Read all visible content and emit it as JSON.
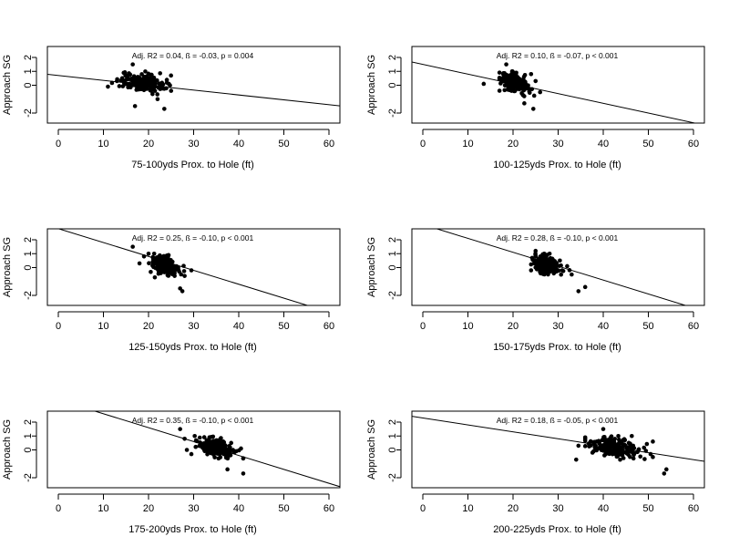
{
  "chart_data": [
    {
      "type": "scatter",
      "title": "",
      "annotation": "Adj. R2 = 0.04, ß = -0.03, p = 0.004",
      "xlabel": "75-100yds Prox. to Hole (ft)",
      "ylabel": "Approach SG",
      "xlim": [
        0,
        60
      ],
      "ylim": [
        -2.5,
        2.5
      ],
      "xticks": [
        0,
        10,
        20,
        30,
        40,
        50,
        60
      ],
      "yticks": [
        -2,
        0,
        1,
        2
      ],
      "fit": {
        "intercept": 0.7,
        "slope": -0.035
      },
      "cluster": {
        "xmean": 18.5,
        "xsd": 2.4,
        "ysd": 0.3,
        "n": 190,
        "xmin": 11,
        "xmax": 26
      },
      "outliers": [
        [
          11,
          -0.1
        ],
        [
          16.5,
          1.5
        ],
        [
          17,
          -1.5
        ],
        [
          23.5,
          -1.7
        ],
        [
          22,
          -1.0
        ],
        [
          25,
          -0.4
        ],
        [
          24.5,
          0.1
        ],
        [
          13,
          0.3
        ]
      ]
    },
    {
      "type": "scatter",
      "title": "",
      "annotation": "Adj. R2 = 0.10, ß = -0.07, p < 0.001",
      "xlabel": "100-125yds Prox. to Hole (ft)",
      "ylabel": "Approach SG",
      "xlim": [
        0,
        60
      ],
      "ylim": [
        -2.5,
        2.5
      ],
      "xticks": [
        0,
        10,
        20,
        30,
        40,
        50,
        60
      ],
      "yticks": [
        -2,
        0,
        1,
        2
      ],
      "fit": {
        "intercept": 1.5,
        "slope": -0.07
      },
      "cluster": {
        "xmean": 20,
        "xsd": 1.6,
        "ysd": 0.3,
        "n": 190,
        "xmin": 17,
        "xmax": 25
      },
      "outliers": [
        [
          13.5,
          0.1
        ],
        [
          18.5,
          1.5
        ],
        [
          22.5,
          -1.3
        ],
        [
          24.5,
          -1.7
        ],
        [
          26,
          -0.5
        ],
        [
          24,
          0.8
        ],
        [
          25,
          0.3
        ]
      ]
    },
    {
      "type": "scatter",
      "title": "",
      "annotation": "Adj. R2 = 0.25, ß = -0.10, p < 0.001",
      "xlabel": "125-150yds Prox. to Hole (ft)",
      "ylabel": "Approach SG",
      "xlim": [
        0,
        60
      ],
      "ylim": [
        -2.5,
        2.5
      ],
      "xticks": [
        0,
        10,
        20,
        30,
        40,
        50,
        60
      ],
      "yticks": [
        -2,
        0,
        1,
        2
      ],
      "fit": {
        "intercept": 2.8,
        "slope": -0.1
      },
      "cluster": {
        "xmean": 23.5,
        "xsd": 1.4,
        "ysd": 0.32,
        "n": 190,
        "xmin": 20,
        "xmax": 28
      },
      "outliers": [
        [
          16.5,
          1.5
        ],
        [
          18,
          0.3
        ],
        [
          19,
          0.8
        ],
        [
          27,
          -1.5
        ],
        [
          27.5,
          -1.7
        ],
        [
          29.5,
          -0.2
        ],
        [
          28,
          -0.6
        ]
      ]
    },
    {
      "type": "scatter",
      "title": "",
      "annotation": "Adj. R2 = 0.28, ß = -0.10, p < 0.001",
      "xlabel": "150-175yds Prox. to Hole (ft)",
      "ylabel": "Approach SG",
      "xlim": [
        0,
        60
      ],
      "ylim": [
        -2.5,
        2.5
      ],
      "xticks": [
        0,
        10,
        20,
        30,
        40,
        50,
        60
      ],
      "yticks": [
        -2,
        0,
        1,
        2
      ],
      "fit": {
        "intercept": 3.1,
        "slope": -0.1
      },
      "cluster": {
        "xmean": 27.5,
        "xsd": 1.5,
        "ysd": 0.32,
        "n": 200,
        "xmin": 24,
        "xmax": 33
      },
      "outliers": [
        [
          24,
          -0.2
        ],
        [
          25,
          1.2
        ],
        [
          34.5,
          -1.7
        ],
        [
          36,
          -1.4
        ],
        [
          33,
          -0.5
        ],
        [
          32,
          0.1
        ]
      ]
    },
    {
      "type": "scatter",
      "title": "",
      "annotation": "Adj. R2 = 0.35, ß = -0.10, p < 0.001",
      "xlabel": "175-200yds Prox. to Hole (ft)",
      "ylabel": "Approach SG",
      "xlim": [
        0,
        60
      ],
      "ylim": [
        -2.5,
        2.5
      ],
      "xticks": [
        0,
        10,
        20,
        30,
        40,
        50,
        60
      ],
      "yticks": [
        -2,
        0,
        1,
        2
      ],
      "fit": {
        "intercept": 3.6,
        "slope": -0.1
      },
      "cluster": {
        "xmean": 34.5,
        "xsd": 1.8,
        "ysd": 0.32,
        "n": 200,
        "xmin": 30,
        "xmax": 41
      },
      "outliers": [
        [
          27,
          1.5
        ],
        [
          28,
          0.8
        ],
        [
          28.5,
          0.0
        ],
        [
          29.5,
          -0.3
        ],
        [
          37.5,
          -1.4
        ],
        [
          41,
          -1.7
        ],
        [
          40.5,
          0.1
        ],
        [
          41,
          -0.6
        ]
      ]
    },
    {
      "type": "scatter",
      "title": "",
      "annotation": "Adj. R2 = 0.18, ß = -0.05, p < 0.001",
      "xlabel": "200-225yds Prox. to Hole (ft)",
      "ylabel": "Approach SG",
      "xlim": [
        0,
        60
      ],
      "ylim": [
        -2.5,
        2.5
      ],
      "xticks": [
        0,
        10,
        20,
        30,
        40,
        50,
        60
      ],
      "yticks": [
        -2,
        0,
        1,
        2
      ],
      "fit": {
        "intercept": 2.3,
        "slope": -0.05
      },
      "cluster": {
        "xmean": 42.5,
        "xsd": 3.0,
        "ysd": 0.32,
        "n": 200,
        "xmin": 36,
        "xmax": 51
      },
      "outliers": [
        [
          34,
          -0.7
        ],
        [
          34.5,
          0.3
        ],
        [
          40,
          1.5
        ],
        [
          53.5,
          -1.7
        ],
        [
          54,
          -1.4
        ],
        [
          51,
          0.6
        ],
        [
          36,
          0.9
        ],
        [
          50.5,
          -0.3
        ]
      ]
    }
  ]
}
